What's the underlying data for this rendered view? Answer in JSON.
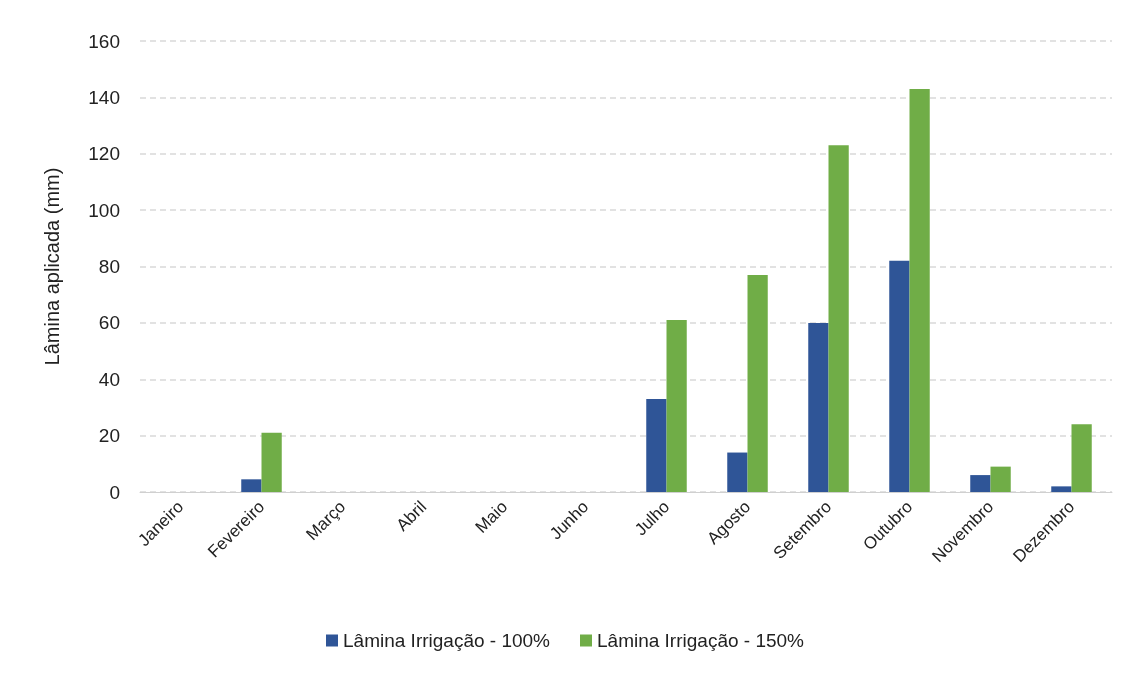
{
  "chart_data": {
    "type": "bar",
    "ylabel": "Lâmina aplicada (mm)",
    "categories": [
      "Janeiro",
      "Fevereiro",
      "Março",
      "Abril",
      "Maio",
      "Junho",
      "Julho",
      "Agosto",
      "Setembro",
      "Outubro",
      "Novembro",
      "Dezembro"
    ],
    "series": [
      {
        "name": "Lâmina Irrigação - 100%",
        "color": "#2f5597",
        "values": [
          0,
          4.5,
          0,
          0,
          0,
          0,
          33,
          14,
          60,
          82,
          6,
          2
        ]
      },
      {
        "name": "Lâmina Irrigação - 150%",
        "color": "#70ad47",
        "values": [
          0,
          21,
          0,
          0,
          0,
          0,
          61,
          77,
          123,
          143,
          9,
          24
        ]
      }
    ],
    "ylim": [
      0,
      160
    ],
    "yticks": [
      0,
      20,
      40,
      60,
      80,
      100,
      120,
      140,
      160
    ],
    "grid": "y",
    "legend": "bottom"
  }
}
